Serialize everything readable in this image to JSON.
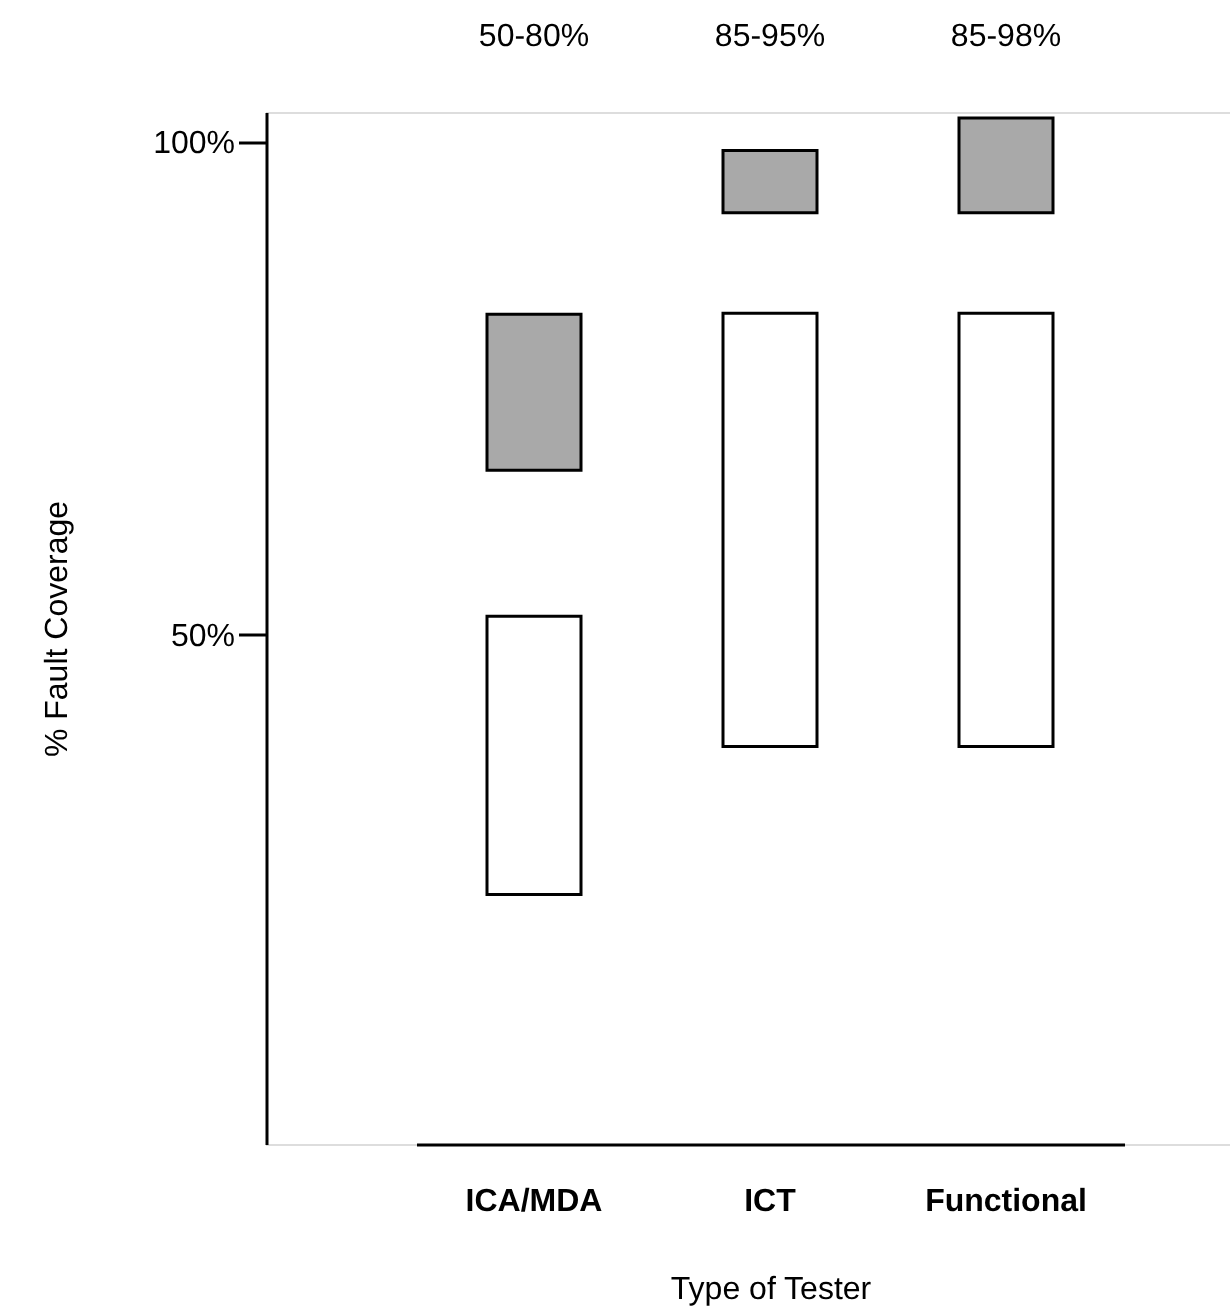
{
  "chart_data": {
    "type": "bar",
    "xlabel": "Type of Tester",
    "ylabel": "% Fault Coverage",
    "categories": [
      "ICA/MDA",
      "ICT",
      "Functional"
    ],
    "series": [
      {
        "color": "#ffffff",
        "base": [
          23.7,
          38.7,
          38.7
        ],
        "values": [
          28.2,
          43.9,
          43.9
        ]
      },
      {
        "color": "#a9a9a9",
        "base": [
          66.7,
          92.8,
          92.8
        ],
        "values": [
          15.8,
          6.3,
          9.6
        ]
      }
    ],
    "ylim": [
      -1.6,
      103
    ],
    "yticks": [
      {
        "value": 50,
        "label": "50%"
      },
      {
        "value": 100,
        "label": "100%"
      }
    ],
    "annotations": [
      "50-80%",
      "85-95%",
      "85-98%"
    ],
    "legend": false,
    "grid": false
  }
}
